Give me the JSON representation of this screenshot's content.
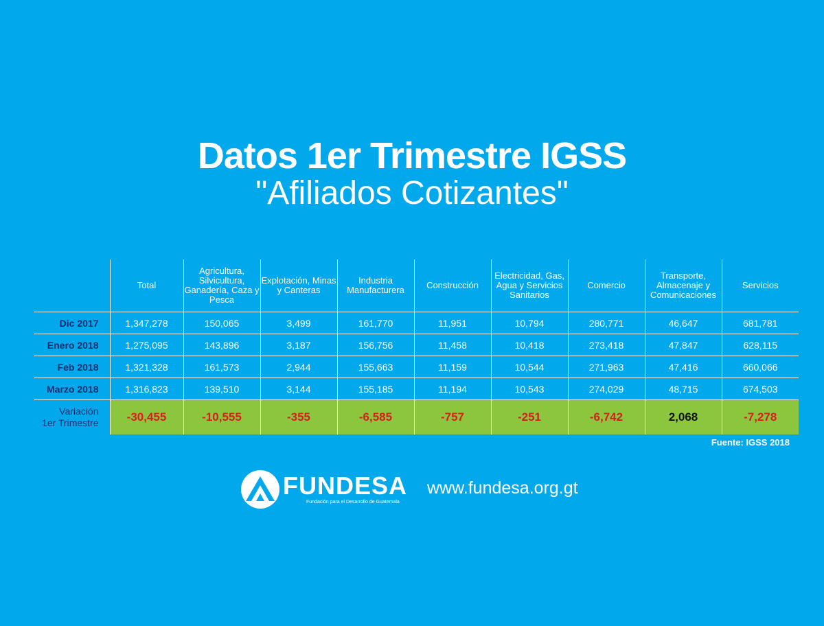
{
  "title": "Datos 1er Trimestre IGSS",
  "subtitle": "\"Afiliados Cotizantes\"",
  "table": {
    "headers": [
      "Total",
      "Agricultura, Silvicultura, Ganadería, Caza y Pesca",
      "Explotación, Minas y Canteras",
      "Industria Manufacturera",
      "Construcción",
      "Electricidad, Gas, Agua y Servicios Sanitarios",
      "Comercio",
      "Transporte, Almacenaje y Comunicaciones",
      "Servicios"
    ],
    "rows": [
      {
        "label": "Dic 2017",
        "values": [
          "1,347,278",
          "150,065",
          "3,499",
          "161,770",
          "11,951",
          "10,794",
          "280,771",
          "46,647",
          "681,781"
        ]
      },
      {
        "label": "Enero 2018",
        "values": [
          "1,275,095",
          "143,896",
          "3,187",
          "156,756",
          "11,458",
          "10,418",
          "273,418",
          "47,847",
          "628,115"
        ]
      },
      {
        "label": "Feb 2018",
        "values": [
          "1,321,328",
          "161,573",
          "2,944",
          "155,663",
          "11,159",
          "10,544",
          "271,963",
          "47,416",
          "660,066"
        ]
      },
      {
        "label": "Marzo 2018",
        "values": [
          "1,316,823",
          "139,510",
          "3,144",
          "155,185",
          "11,194",
          "10,543",
          "274,029",
          "48,715",
          "674,503"
        ]
      }
    ],
    "variation": {
      "label_line1": "Variación",
      "label_line2": "1er Trimestre",
      "values": [
        "-30,455",
        "-10,555",
        "-355",
        "-6,585",
        "-757",
        "-251",
        "-6,742",
        "2,068",
        "-7,278"
      ]
    }
  },
  "source": "Fuente: IGSS 2018",
  "logo": {
    "name": "FUNDESA",
    "tagline": "Fundación para el Desarrollo de Guatemala",
    "icon": "fundesa-mountain-logo-icon"
  },
  "website": "www.fundesa.org.gt",
  "colors": {
    "background": "#01a9ec",
    "variation_row": "#8cc63e",
    "negative": "#d81e1e",
    "row_label": "#1b2a6e"
  }
}
